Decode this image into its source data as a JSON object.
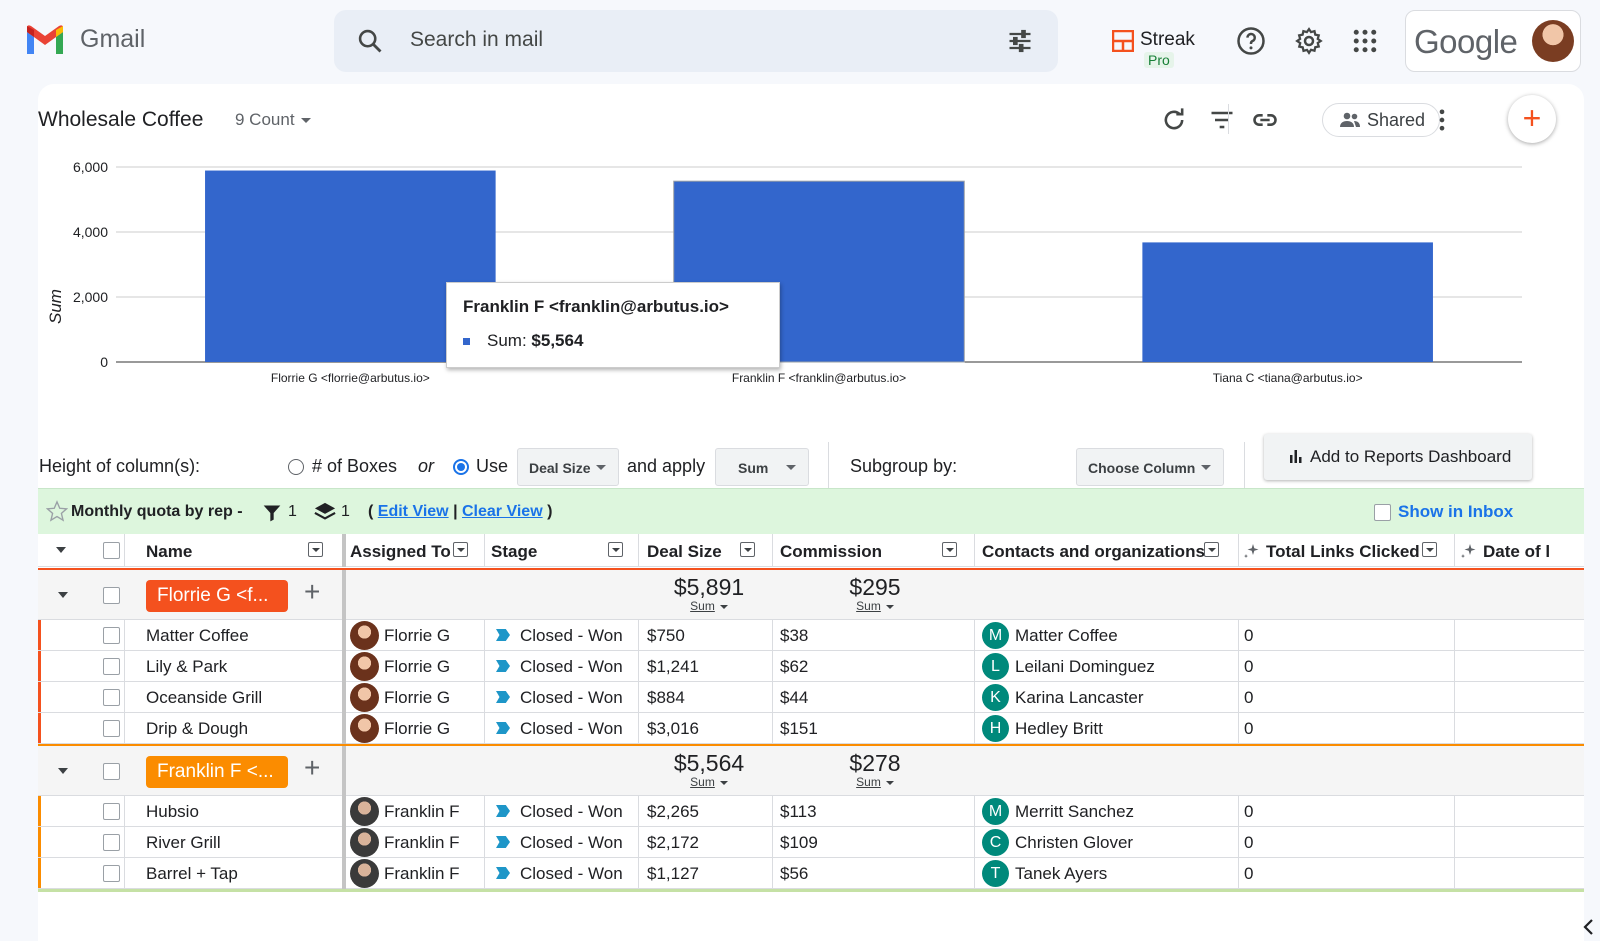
{
  "app": {
    "name": "Gmail"
  },
  "search": {
    "placeholder": "Search in mail"
  },
  "streak": {
    "label": "Streak",
    "badge": "Pro"
  },
  "google": {
    "wordmark": "Google"
  },
  "report": {
    "title": "Wholesale Coffee",
    "count_label": "9 Count",
    "shared_label": "Shared"
  },
  "chart_data": {
    "type": "bar",
    "categories": [
      "Florrie G <florrie@arbutus.io>",
      "Franklin F <franklin@arbutus.io>",
      "Tiana C <tiana@arbutus.io>"
    ],
    "values": [
      5891,
      5564,
      3680
    ],
    "ylabel": "Sum",
    "ylim": [
      0,
      6000
    ],
    "yticks": [
      "0",
      "2,000",
      "4,000",
      "6,000"
    ],
    "color": "#3366cc",
    "tooltip": {
      "title": "Franklin F <franklin@arbutus.io>",
      "label": "Sum:",
      "value": "$5,564"
    }
  },
  "controls": {
    "height_label": "Height of column(s):",
    "boxes_label": "# of Boxes",
    "or_label": "or",
    "use_label": "Use",
    "field_value": "Deal Size",
    "apply_label": "and apply",
    "agg_value": "Sum",
    "subgroup_label": "Subgroup by:",
    "subgroup_value": "Choose Column",
    "add_dashboard_label": "Add to Reports Dashboard"
  },
  "view": {
    "name": "Monthly quota by rep -",
    "filter_count": "1",
    "layer_count": "1",
    "edit_label": "Edit View",
    "clear_label": "Clear View",
    "show_inbox_label": "Show in Inbox"
  },
  "columns": [
    "Name",
    "Assigned To",
    "Stage",
    "Deal Size",
    "Commission",
    "Contacts and organizations",
    "Total Links Clicked",
    "Date of l"
  ],
  "groups": [
    {
      "label": "Florrie G <f...",
      "color": "#f4511e",
      "deal_sum": "$5,891",
      "commission_sum": "$295",
      "sum_label": "Sum",
      "rows": [
        {
          "name": "Matter Coffee",
          "assigned": "Florrie G",
          "stage": "Closed - Won",
          "deal": "$750",
          "commission": "$38",
          "contact_initial": "M",
          "contact": "Matter Coffee",
          "clicks": "0"
        },
        {
          "name": "Lily & Park",
          "assigned": "Florrie G",
          "stage": "Closed - Won",
          "deal": "$1,241",
          "commission": "$62",
          "contact_initial": "L",
          "contact": "Leilani Dominguez",
          "clicks": "0"
        },
        {
          "name": "Oceanside Grill",
          "assigned": "Florrie G",
          "stage": "Closed - Won",
          "deal": "$884",
          "commission": "$44",
          "contact_initial": "K",
          "contact": "Karina Lancaster",
          "clicks": "0"
        },
        {
          "name": "Drip & Dough",
          "assigned": "Florrie G",
          "stage": "Closed - Won",
          "deal": "$3,016",
          "commission": "$151",
          "contact_initial": "H",
          "contact": "Hedley Britt",
          "clicks": "0"
        }
      ]
    },
    {
      "label": "Franklin F <...",
      "color": "#fb8c00",
      "deal_sum": "$5,564",
      "commission_sum": "$278",
      "sum_label": "Sum",
      "rows": [
        {
          "name": "Hubsio",
          "assigned": "Franklin F",
          "stage": "Closed - Won",
          "deal": "$2,265",
          "commission": "$113",
          "contact_initial": "M",
          "contact": "Merritt Sanchez",
          "clicks": "0"
        },
        {
          "name": "River Grill",
          "assigned": "Franklin F",
          "stage": "Closed - Won",
          "deal": "$2,172",
          "commission": "$109",
          "contact_initial": "C",
          "contact": "Christen Glover",
          "clicks": "0"
        },
        {
          "name": "Barrel + Tap",
          "assigned": "Franklin F",
          "stage": "Closed - Won",
          "deal": "$1,127",
          "commission": "$56",
          "contact_initial": "T",
          "contact": "Tanek Ayers",
          "clicks": "0"
        }
      ]
    }
  ]
}
